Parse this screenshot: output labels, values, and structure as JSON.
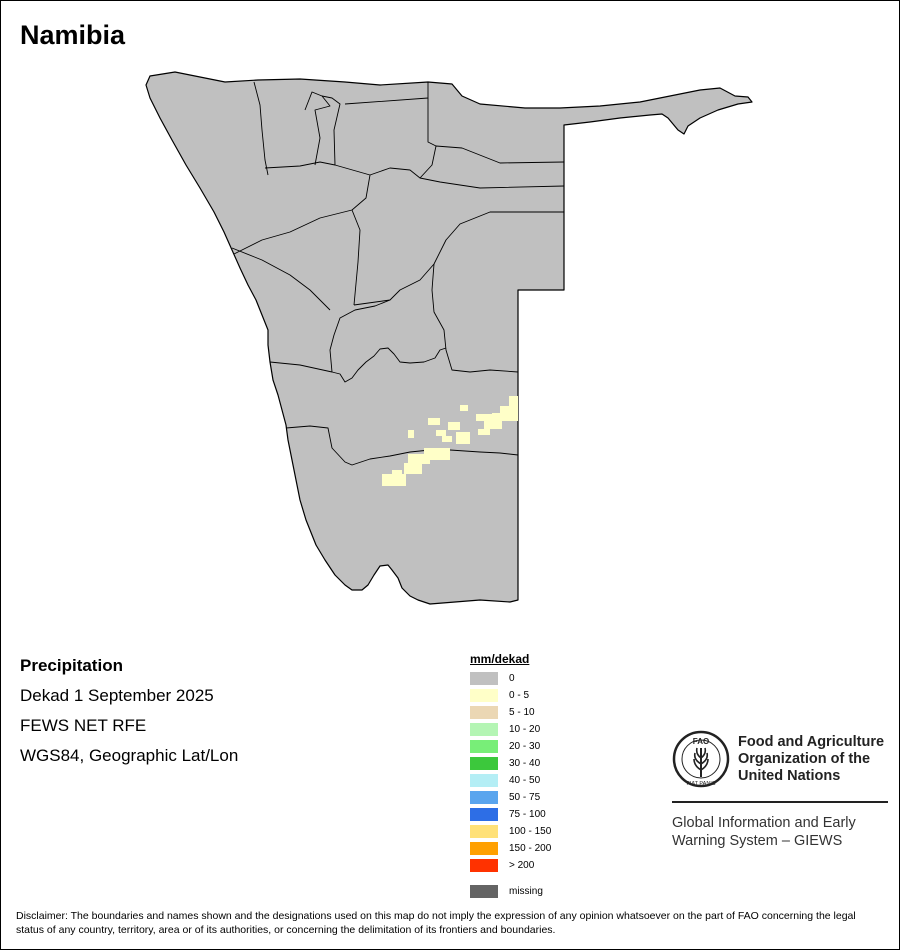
{
  "map": {
    "title": "Namibia",
    "country_fill": "#c0c0c0",
    "rain_fill": "#ffffc8"
  },
  "info": {
    "heading": "Precipitation",
    "period": "Dekad 1 September 2025",
    "source": "FEWS NET RFE",
    "projection": "WGS84, Geographic Lat/Lon"
  },
  "legend": {
    "title": "mm/dekad",
    "items": [
      {
        "label": "0",
        "color": "#c0c0c0"
      },
      {
        "label": "0 - 5",
        "color": "#ffffc8"
      },
      {
        "label": "5 - 10",
        "color": "#ebd7b4"
      },
      {
        "label": "10 - 20",
        "color": "#b4f5b4"
      },
      {
        "label": "20 - 30",
        "color": "#78ee78"
      },
      {
        "label": "30 - 40",
        "color": "#3cc83c"
      },
      {
        "label": "40 - 50",
        "color": "#b4eef5"
      },
      {
        "label": "50 - 75",
        "color": "#5aa5ee"
      },
      {
        "label": "75 - 100",
        "color": "#2d6ee6"
      },
      {
        "label": "100 - 150",
        "color": "#ffe178"
      },
      {
        "label": "150 - 200",
        "color": "#ffa000"
      },
      {
        "label": "> 200",
        "color": "#ff3200"
      }
    ],
    "missing": {
      "label": "missing",
      "color": "#646464"
    }
  },
  "logo": {
    "org_name": "Food and Agriculture Organization of the United Nations",
    "emblem_text": "FAO",
    "emblem_motto": "FIAT PANIS",
    "system_name": "Global Information and Early Warning System – GIEWS"
  },
  "disclaimer": "Disclaimer: The boundaries and names shown and the designations used on this map do not imply the expression of any opinion whatsoever on the part of FAO concerning the legal status of any country, territory, area or of its authorities, or concerning the delimitation of its frontiers and boundaries."
}
